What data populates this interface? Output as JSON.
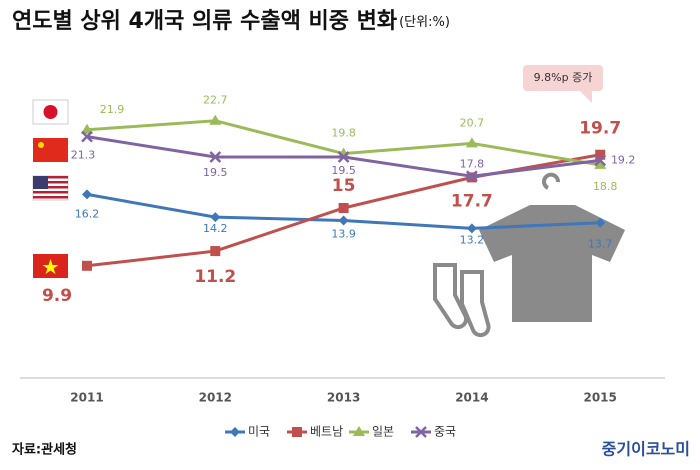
{
  "chart_data": {
    "type": "line",
    "title": "연도별 상위 4개국 의류 수출액 비중 변화",
    "subtitle": "(단위:%)",
    "categories": [
      "2011",
      "2012",
      "2013",
      "2014",
      "2015"
    ],
    "series": [
      {
        "name": "미국",
        "color": "#3f77b8",
        "values": [
          16.2,
          14.2,
          13.9,
          13.2,
          13.7
        ]
      },
      {
        "name": "베트남",
        "color": "#c0504d",
        "values": [
          9.9,
          11.2,
          15,
          17.7,
          19.7
        ]
      },
      {
        "name": "일본",
        "color": "#9bbb59",
        "values": [
          21.9,
          22.7,
          19.8,
          20.7,
          18.8
        ]
      },
      {
        "name": "중국",
        "color": "#8064a2",
        "values": [
          21.3,
          19.5,
          19.5,
          17.8,
          19.2
        ]
      }
    ],
    "ylim": [
      0,
      30
    ],
    "annotation": "9.8%p 증가",
    "source": "자료:관세청",
    "brand": "중기이코노미"
  }
}
